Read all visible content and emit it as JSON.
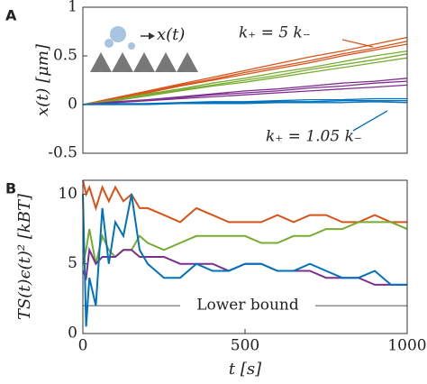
{
  "chart_data": [
    {
      "type": "line",
      "panel_label": "A",
      "ylabel": "x(t) [μm]",
      "icon_label": "x(t)",
      "xlim": [
        0,
        1000
      ],
      "ylim": [
        -0.5,
        1
      ],
      "yticks": [
        -0.5,
        0,
        0.5,
        1
      ],
      "x": [
        0,
        100,
        200,
        300,
        400,
        500,
        600,
        700,
        800,
        900,
        1000
      ],
      "series": [
        {
          "color": "#d95319",
          "values": [
            0,
            0.07,
            0.14,
            0.21,
            0.28,
            0.35,
            0.42,
            0.49,
            0.55,
            0.62,
            0.69
          ]
        },
        {
          "color": "#d95319",
          "values": [
            0,
            0.06,
            0.13,
            0.2,
            0.26,
            0.33,
            0.39,
            0.45,
            0.52,
            0.58,
            0.65
          ]
        },
        {
          "color": "#d95319",
          "values": [
            0,
            0.06,
            0.12,
            0.19,
            0.25,
            0.31,
            0.37,
            0.43,
            0.5,
            0.56,
            0.62
          ]
        },
        {
          "color": "#77ac30",
          "values": [
            0,
            0.05,
            0.11,
            0.16,
            0.22,
            0.27,
            0.33,
            0.38,
            0.44,
            0.5,
            0.55
          ]
        },
        {
          "color": "#77ac30",
          "values": [
            0,
            0.05,
            0.1,
            0.15,
            0.2,
            0.25,
            0.3,
            0.36,
            0.41,
            0.46,
            0.52
          ]
        },
        {
          "color": "#77ac30",
          "values": [
            0,
            0.04,
            0.09,
            0.14,
            0.19,
            0.23,
            0.28,
            0.33,
            0.38,
            0.43,
            0.48
          ]
        },
        {
          "color": "#7e2f8e",
          "values": [
            0,
            0.03,
            0.05,
            0.08,
            0.11,
            0.14,
            0.16,
            0.19,
            0.22,
            0.24,
            0.27
          ]
        },
        {
          "color": "#7e2f8e",
          "values": [
            0,
            0.02,
            0.05,
            0.07,
            0.1,
            0.12,
            0.14,
            0.17,
            0.19,
            0.22,
            0.24
          ]
        },
        {
          "color": "#7e2f8e",
          "values": [
            0,
            0.02,
            0.04,
            0.06,
            0.08,
            0.1,
            0.12,
            0.14,
            0.16,
            0.18,
            0.2
          ]
        },
        {
          "color": "#0072bd",
          "values": [
            0,
            0.01,
            0.01,
            0.02,
            0.03,
            0.03,
            0.04,
            0.05,
            0.05,
            0.06,
            0.06
          ]
        },
        {
          "color": "#0072bd",
          "values": [
            0,
            0.0,
            0.01,
            0.01,
            0.02,
            0.02,
            0.03,
            0.03,
            0.04,
            0.04,
            0.04
          ]
        },
        {
          "color": "#0072bd",
          "values": [
            0,
            0.0,
            0.0,
            0.01,
            0.01,
            0.01,
            0.02,
            0.02,
            0.02,
            0.03,
            0.02
          ]
        }
      ],
      "annotations": [
        {
          "text": "k₊ = 5 k₋",
          "color": "#d95319"
        },
        {
          "text": "k₊ = 1.05 k₋",
          "color": "#0072bd"
        }
      ]
    },
    {
      "type": "line",
      "panel_label": "B",
      "ylabel": "TS(t)ϵ(t)² [kBT]",
      "xlabel": "t [s]",
      "xlim": [
        0,
        1000
      ],
      "ylim": [
        0,
        11
      ],
      "yticks": [
        0,
        5,
        10
      ],
      "xticks": [
        0,
        500,
        1000
      ],
      "x": [
        0,
        10,
        20,
        40,
        60,
        80,
        100,
        125,
        150,
        175,
        200,
        250,
        300,
        350,
        400,
        450,
        500,
        550,
        600,
        650,
        700,
        750,
        800,
        850,
        900,
        950,
        1000
      ],
      "series": [
        {
          "color": "#d95319",
          "values": [
            11,
            10,
            10.5,
            9,
            10.5,
            9.5,
            10.5,
            9.5,
            10,
            9,
            9,
            8.5,
            8,
            9,
            8.5,
            8,
            8,
            8,
            8.5,
            8,
            8.5,
            8.5,
            8,
            8,
            8.5,
            8,
            8
          ]
        },
        {
          "color": "#77ac30",
          "values": [
            5,
            6,
            7.5,
            5,
            7,
            6,
            5.5,
            6,
            6,
            7,
            6.5,
            6,
            6.5,
            7,
            7,
            7,
            7,
            6.5,
            6.5,
            7,
            7,
            7.5,
            7.5,
            8,
            8,
            8,
            7.5
          ]
        },
        {
          "color": "#7e2f8e",
          "values": [
            4.5,
            4,
            6,
            5,
            5.5,
            5.5,
            5.5,
            6,
            6,
            5.5,
            5.5,
            5.5,
            5,
            5,
            5,
            4.5,
            5,
            5,
            4.5,
            4.5,
            4.5,
            4,
            4,
            4,
            3.5,
            3.5,
            3.5
          ]
        },
        {
          "color": "#0072bd",
          "values": [
            10,
            0.5,
            4,
            2,
            9,
            5,
            8,
            7,
            10,
            6,
            5,
            4,
            4,
            5,
            4.5,
            4.5,
            5,
            5,
            4.5,
            4.5,
            5,
            4.5,
            4,
            4,
            4.5,
            3.5,
            3.5
          ]
        }
      ],
      "lower_bound": 2,
      "lower_bound_label": "Lower bound"
    }
  ]
}
